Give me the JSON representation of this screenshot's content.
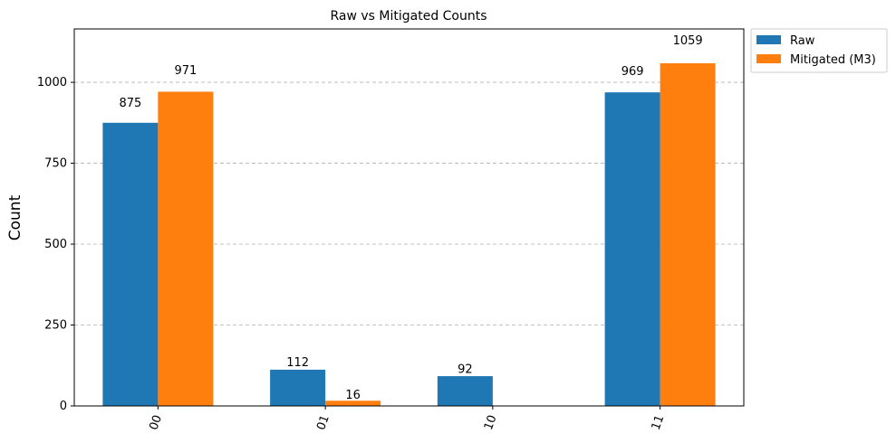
{
  "chart_data": {
    "type": "bar",
    "title": "Raw vs Mitigated Counts",
    "y_label": "Count",
    "categories": [
      "00",
      "01",
      "10",
      "11"
    ],
    "series": [
      {
        "name": "Raw",
        "color": "#1f77b4",
        "values": [
          875,
          112,
          92,
          969
        ]
      },
      {
        "name": "Mitigated (M3)",
        "color": "#ff7f0e",
        "values": [
          971,
          16,
          null,
          1059
        ]
      }
    ],
    "ylim": [
      0,
      1165
    ],
    "yticks": [
      0,
      250,
      500,
      750,
      1000
    ],
    "grid": true,
    "legend": "outside-upper-right"
  }
}
